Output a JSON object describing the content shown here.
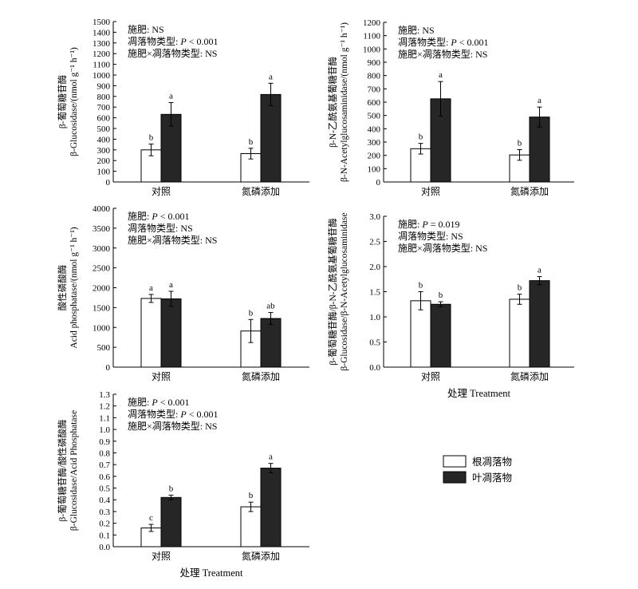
{
  "colors": {
    "root": "#ffffff",
    "leaf": "#262626",
    "axis": "#000000"
  },
  "legend": {
    "items": [
      {
        "label": "根凋落物",
        "color": "#ffffff"
      },
      {
        "label": "叶凋落物",
        "color": "#262626"
      }
    ]
  },
  "xaxis_title": "处理 Treatment",
  "chart_data": [
    {
      "type": "bar",
      "id": "bg",
      "ylabel_cn": "β-葡萄糖苷酶",
      "ylabel_en": "β-Glucosidase/(nmol g⁻¹ h⁻¹)",
      "categories": [
        "对照",
        "氮磷添加"
      ],
      "ylim": [
        0,
        1500
      ],
      "ystep": 100,
      "ydecimals": 0,
      "series": [
        {
          "name": "根凋落物",
          "values": [
            300,
            265
          ],
          "errors": [
            55,
            50
          ],
          "letters": [
            "b",
            "b"
          ]
        },
        {
          "name": "叶凋落物",
          "values": [
            632,
            818
          ],
          "errors": [
            110,
            105
          ],
          "letters": [
            "a",
            "a"
          ]
        }
      ],
      "stats": [
        {
          "label": "施肥: ",
          "p": "",
          "value": "NS"
        },
        {
          "label": "凋落物类型: ",
          "p": "P",
          "value": " < 0.001"
        },
        {
          "label": "施肥×凋落物类型: ",
          "p": "",
          "value": "NS"
        }
      ],
      "show_xtitle": false
    },
    {
      "type": "bar",
      "id": "nag",
      "ylabel_cn": "β-N-乙酰氨基葡糖苷酶",
      "ylabel_en": "β-N-Acetylglucosaminidase/(nmol g⁻¹ h⁻¹)",
      "categories": [
        "对照",
        "氮磷添加"
      ],
      "ylim": [
        0,
        1200
      ],
      "ystep": 100,
      "ydecimals": 0,
      "series": [
        {
          "name": "根凋落物",
          "values": [
            250,
            203
          ],
          "errors": [
            40,
            40
          ],
          "letters": [
            "b",
            "b"
          ]
        },
        {
          "name": "叶凋落物",
          "values": [
            625,
            488
          ],
          "errors": [
            130,
            75
          ],
          "letters": [
            "a",
            "a"
          ]
        }
      ],
      "stats": [
        {
          "label": "施肥: ",
          "p": "",
          "value": "NS"
        },
        {
          "label": "凋落物类型: ",
          "p": "P",
          "value": " < 0.001"
        },
        {
          "label": "施肥×凋落物类型: ",
          "p": "",
          "value": "NS"
        }
      ],
      "show_xtitle": false
    },
    {
      "type": "bar",
      "id": "ap",
      "ylabel_cn": "酸性磷酸酶",
      "ylabel_en": "Acid phosphatase/(nmol g⁻¹ h⁻¹)",
      "categories": [
        "对照",
        "氮磷添加"
      ],
      "ylim": [
        0,
        4000
      ],
      "ystep": 500,
      "ydecimals": 0,
      "series": [
        {
          "name": "根凋落物",
          "values": [
            1730,
            910
          ],
          "errors": [
            100,
            290
          ],
          "letters": [
            "a",
            "b"
          ]
        },
        {
          "name": "叶凋落物",
          "values": [
            1720,
            1225
          ],
          "errors": [
            190,
            150
          ],
          "letters": [
            "a",
            "ab"
          ]
        }
      ],
      "stats": [
        {
          "label": "施肥: ",
          "p": "P",
          "value": " < 0.001"
        },
        {
          "label": "凋落物类型: ",
          "p": "",
          "value": "NS"
        },
        {
          "label": "施肥×凋落物类型: ",
          "p": "",
          "value": "NS"
        }
      ],
      "show_xtitle": false
    },
    {
      "type": "bar",
      "id": "bgnag",
      "ylabel_cn": "β-葡萄糖苷酶/β-N-乙酰氨基葡糖苷酶",
      "ylabel_en": "β-Glucosidase/β-N-Acetylglucosaminidase",
      "categories": [
        "对照",
        "氮磷添加"
      ],
      "ylim": [
        0,
        3.0
      ],
      "ystep": 0.5,
      "ydecimals": 1,
      "series": [
        {
          "name": "根凋落物",
          "values": [
            1.32,
            1.35
          ],
          "errors": [
            0.18,
            0.1
          ],
          "letters": [
            "b",
            "b"
          ]
        },
        {
          "name": "叶凋落物",
          "values": [
            1.25,
            1.72
          ],
          "errors": [
            0.05,
            0.08
          ],
          "letters": [
            "b",
            "a"
          ]
        }
      ],
      "stats": [
        {
          "label": "施肥: ",
          "p": "P",
          "value": " = 0.019"
        },
        {
          "label": "凋落物类型: ",
          "p": "",
          "value": "NS"
        },
        {
          "label": "施肥×凋落物类型: ",
          "p": "",
          "value": "NS"
        }
      ],
      "show_xtitle": true
    },
    {
      "type": "bar",
      "id": "bgap",
      "ylabel_cn": "β-葡萄糖苷酶/酸性磷酸酶",
      "ylabel_en": "β-Glucosidase/Acid Phosphatase",
      "categories": [
        "对照",
        "氮磷添加"
      ],
      "ylim": [
        0,
        1.3
      ],
      "ystep": 0.1,
      "ydecimals": 1,
      "series": [
        {
          "name": "根凋落物",
          "values": [
            0.16,
            0.34
          ],
          "errors": [
            0.03,
            0.04
          ],
          "letters": [
            "c",
            "b"
          ]
        },
        {
          "name": "叶凋落物",
          "values": [
            0.42,
            0.67
          ],
          "errors": [
            0.02,
            0.04
          ],
          "letters": [
            "b",
            "a"
          ]
        }
      ],
      "stats": [
        {
          "label": "施肥: ",
          "p": "P",
          "value": " < 0.001"
        },
        {
          "label": "凋落物类型: ",
          "p": "P",
          "value": " < 0.001"
        },
        {
          "label": "施肥×凋落物类型: ",
          "p": "",
          "value": "NS"
        }
      ],
      "show_xtitle": true
    }
  ]
}
